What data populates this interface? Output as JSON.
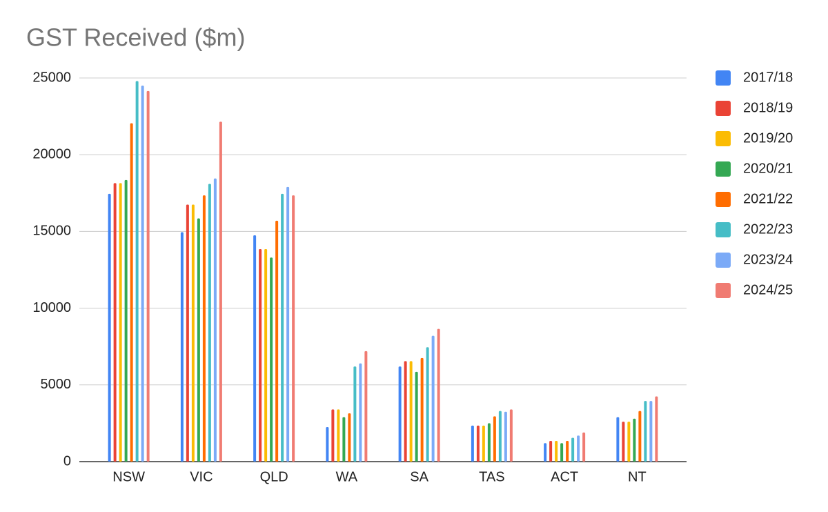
{
  "chart_data": {
    "type": "bar",
    "title": "GST Received ($m)",
    "categories": [
      "NSW",
      "VIC",
      "QLD",
      "WA",
      "SA",
      "TAS",
      "ACT",
      "NT"
    ],
    "series": [
      {
        "name": "2017/18",
        "color": "#4285f4",
        "values": [
          17450,
          14950,
          14750,
          2250,
          6200,
          2350,
          1200,
          2900
        ]
      },
      {
        "name": "2018/19",
        "color": "#ea4335",
        "values": [
          18150,
          16750,
          13850,
          3400,
          6550,
          2350,
          1350,
          2600
        ]
      },
      {
        "name": "2019/20",
        "color": "#fbbc04",
        "values": [
          18150,
          16750,
          13850,
          3400,
          6550,
          2350,
          1350,
          2600
        ]
      },
      {
        "name": "2020/21",
        "color": "#34a853",
        "values": [
          18350,
          15850,
          13300,
          2900,
          5850,
          2500,
          1200,
          2800
        ]
      },
      {
        "name": "2021/22",
        "color": "#ff6d01",
        "values": [
          22050,
          17350,
          15700,
          3150,
          6750,
          2950,
          1350,
          3300
        ]
      },
      {
        "name": "2022/23",
        "color": "#46bdc6",
        "values": [
          24800,
          18100,
          17450,
          6200,
          7450,
          3300,
          1550,
          3950
        ]
      },
      {
        "name": "2023/24",
        "color": "#7baaf7",
        "values": [
          24500,
          18450,
          17900,
          6400,
          8200,
          3250,
          1700,
          3950
        ]
      },
      {
        "name": "2024/25",
        "color": "#f07b72",
        "values": [
          24150,
          22150,
          17350,
          7200,
          8650,
          3400,
          1900,
          4250
        ]
      }
    ],
    "ylim": [
      0,
      25000
    ],
    "yticks": [
      0,
      5000,
      10000,
      15000,
      20000,
      25000
    ],
    "grid": true,
    "legend": "right"
  }
}
